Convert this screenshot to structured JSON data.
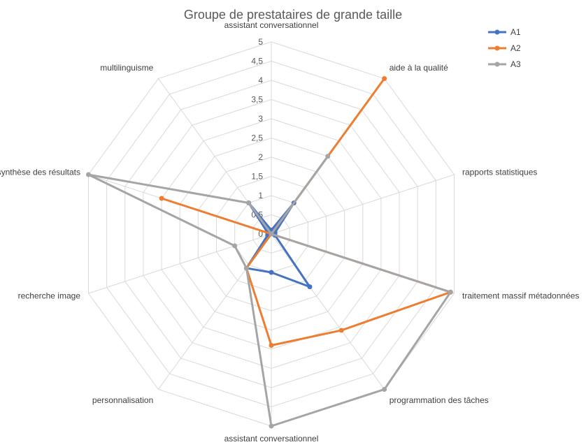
{
  "chart_data": {
    "type": "radar",
    "title": "Groupe de prestataires de grande taille",
    "axes": [
      "assistant conversationnel",
      "aide à la qualité",
      "rapports statistiques",
      "traitement massif métadonnées",
      "programmation des tâches",
      "assistant conversationnel",
      "personnalisation",
      "recherche image",
      "synthèse des résultats",
      "multilinguisme"
    ],
    "rlim": [
      0,
      5
    ],
    "ticks": [
      "0",
      "0,5",
      "1",
      "1,5",
      "2",
      "2,5",
      "3",
      "3,5",
      "4",
      "4,5",
      "5"
    ],
    "legend_position": "top-right",
    "series": [
      {
        "name": "A1",
        "color": "#4472C4",
        "values": [
          0.1,
          1.0,
          0.1,
          0.1,
          1.7,
          1.0,
          1.1,
          0.1,
          0.1,
          1.0
        ]
      },
      {
        "name": "A2",
        "color": "#ED7D31",
        "values": [
          0.0,
          5.0,
          0.0,
          4.9,
          3.1,
          2.9,
          1.1,
          0.0,
          3.0,
          0.0
        ]
      },
      {
        "name": "A3",
        "color": "#A5A5A5",
        "values": [
          0.0,
          2.5,
          0.0,
          4.9,
          5.0,
          5.0,
          1.1,
          1.0,
          5.0,
          1.0
        ]
      }
    ]
  }
}
